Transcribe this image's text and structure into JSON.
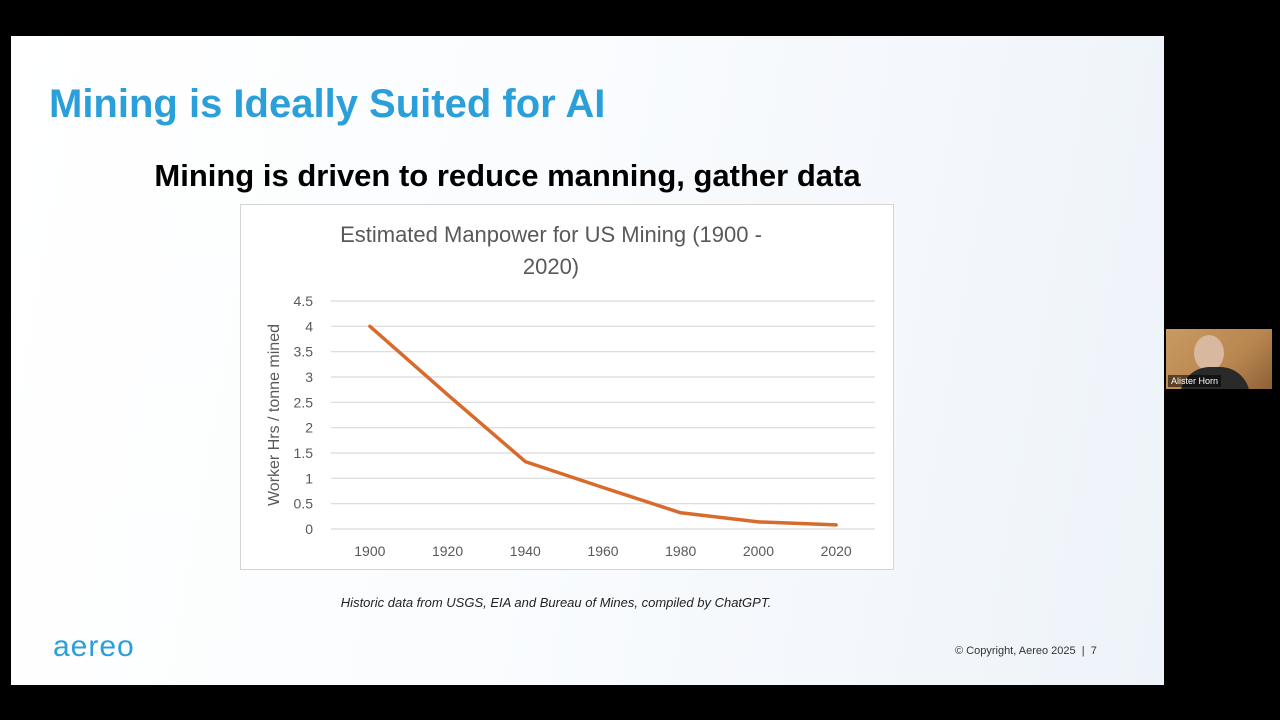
{
  "slide": {
    "title": "Mining is Ideally Suited for AI",
    "subtitle": "Mining is driven to reduce manning, gather data",
    "caption": "Historic data from USGS, EIA and Bureau of Mines, compiled by ChatGPT.",
    "logo_text": "aereo",
    "copyright": "© Copyright, Aereo 2025",
    "page_number": "7",
    "accent_color": "#2b9fd9"
  },
  "chart_data": {
    "type": "line",
    "title_line1": "Estimated Manpower for US Mining (1900 -",
    "title_line2": "2020)",
    "xlabel": "",
    "ylabel": "Worker Hrs / tonne mined",
    "categories": [
      "1900",
      "1920",
      "1940",
      "1960",
      "1980",
      "2000",
      "2020"
    ],
    "y_ticks": [
      "0",
      "0.5",
      "1",
      "1.5",
      "2",
      "2.5",
      "3",
      "3.5",
      "4",
      "4.5"
    ],
    "ylim": [
      0,
      4.5
    ],
    "grid": true,
    "series": [
      {
        "values": [
          4.0,
          2.65,
          1.33,
          0.82,
          0.32,
          0.14,
          0.08
        ],
        "color": "#d86b2c"
      }
    ],
    "gridline_color": "#d9d9d9",
    "text_color": "#595959"
  },
  "participant": {
    "name": "Alister Horn"
  }
}
